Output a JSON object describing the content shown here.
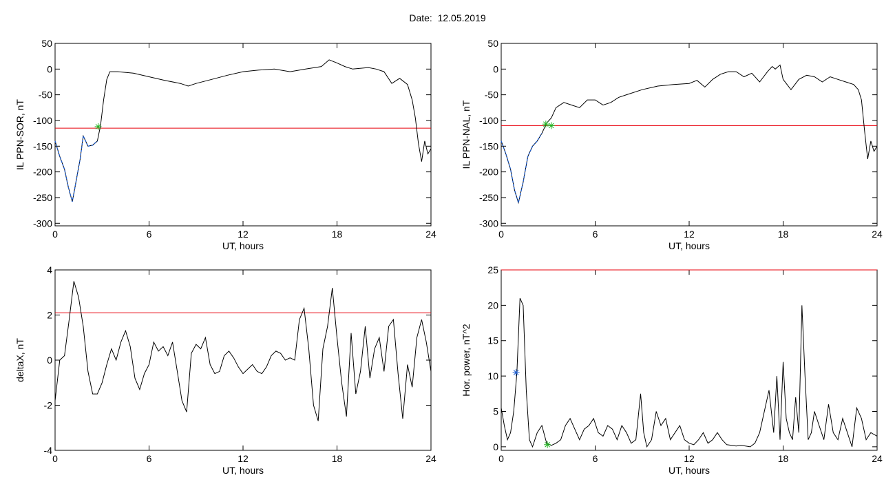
{
  "figure": {
    "date_label": "Date:",
    "date_value": "12.05.2019"
  },
  "colors": {
    "threshold": "#e8000b",
    "series": "#000000",
    "fit": "#1f5fd0",
    "marker_blue": "#1f5fd0",
    "marker_green": "#21b321"
  },
  "chart_data": [
    {
      "type": "line",
      "ylabel": "IL PPN-SOR, nT",
      "xlabel": "UT, hours",
      "xlim": [
        0,
        24
      ],
      "ylim": [
        -305,
        50
      ],
      "xticks": [
        0,
        6,
        12,
        18,
        24
      ],
      "yticks": [
        50,
        0,
        -50,
        -100,
        -150,
        -200,
        -250,
        -300
      ],
      "threshold": -115,
      "x": [
        0,
        0.3,
        0.6,
        0.85,
        1.1,
        1.3,
        1.6,
        1.8,
        2.1,
        2.4,
        2.7,
        2.9,
        3.1,
        3.3,
        3.5,
        4,
        5,
        6,
        7,
        8,
        8.5,
        9,
        10,
        11,
        12,
        13,
        14,
        15,
        16,
        17,
        17.5,
        18,
        18.5,
        19,
        20,
        20.5,
        21,
        21.5,
        22,
        22.5,
        22.8,
        23,
        23.2,
        23.4,
        23.6,
        23.8,
        24
      ],
      "values": [
        -140,
        -170,
        -195,
        -230,
        -258,
        -225,
        -175,
        -130,
        -150,
        -148,
        -140,
        -110,
        -60,
        -20,
        -5,
        -5,
        -8,
        -15,
        -22,
        -28,
        -33,
        -28,
        -20,
        -12,
        -5,
        -2,
        0,
        -5,
        0,
        5,
        18,
        12,
        5,
        0,
        3,
        0,
        -5,
        -28,
        -18,
        -30,
        -60,
        -95,
        -145,
        -180,
        -140,
        -165,
        -155
      ],
      "fit_x": [
        0,
        0.3,
        0.6,
        0.85,
        1.1,
        1.3,
        1.6,
        1.8,
        2.1,
        2.4,
        2.7
      ],
      "fit_values": [
        -140,
        -170,
        -195,
        -230,
        -258,
        -225,
        -175,
        -130,
        -150,
        -148,
        -140
      ],
      "markers": [
        {
          "x": 2.75,
          "y": -112,
          "color": "green"
        }
      ]
    },
    {
      "type": "line",
      "ylabel": "IL PPN-NAL, nT",
      "xlabel": "UT, hours",
      "xlim": [
        0,
        24
      ],
      "ylim": [
        -305,
        50
      ],
      "xticks": [
        0,
        6,
        12,
        18,
        24
      ],
      "yticks": [
        50,
        0,
        -50,
        -100,
        -150,
        -200,
        -250,
        -300
      ],
      "threshold": -110,
      "x": [
        0,
        0.3,
        0.6,
        0.85,
        1.1,
        1.4,
        1.7,
        2,
        2.3,
        2.6,
        2.9,
        3.2,
        3.5,
        4,
        4.5,
        5,
        5.5,
        6,
        6.5,
        7,
        7.5,
        8,
        9,
        10,
        11,
        12,
        12.5,
        13,
        13.5,
        14,
        14.5,
        15,
        15.5,
        16,
        16.5,
        17,
        17.3,
        17.5,
        17.8,
        18,
        18.5,
        19,
        19.5,
        20,
        20.5,
        21,
        21.5,
        22,
        22.5,
        22.8,
        23,
        23.2,
        23.4,
        23.6,
        23.8,
        24
      ],
      "values": [
        -140,
        -165,
        -195,
        -235,
        -260,
        -220,
        -170,
        -150,
        -140,
        -125,
        -105,
        -95,
        -75,
        -65,
        -70,
        -75,
        -60,
        -60,
        -70,
        -65,
        -55,
        -50,
        -40,
        -33,
        -30,
        -28,
        -22,
        -35,
        -20,
        -10,
        -5,
        -5,
        -15,
        -8,
        -25,
        -5,
        5,
        0,
        8,
        -20,
        -40,
        -20,
        -12,
        -15,
        -25,
        -15,
        -20,
        -25,
        -30,
        -40,
        -60,
        -120,
        -175,
        -140,
        -160,
        -150
      ],
      "fit_x": [
        0,
        0.3,
        0.6,
        0.85,
        1.1,
        1.4,
        1.7,
        2,
        2.3,
        2.6
      ],
      "fit_values": [
        -140,
        -165,
        -195,
        -235,
        -260,
        -220,
        -170,
        -150,
        -140,
        -125
      ],
      "markers": [
        {
          "x": 2.85,
          "y": -107,
          "color": "green"
        },
        {
          "x": 3.2,
          "y": -110,
          "color": "green"
        }
      ]
    },
    {
      "type": "line",
      "ylabel": "deltaX, nT",
      "xlabel": "UT, hours",
      "xlim": [
        0,
        24
      ],
      "ylim": [
        -4,
        4
      ],
      "xticks": [
        0,
        6,
        12,
        18,
        24
      ],
      "yticks": [
        4,
        2,
        0,
        -2,
        -4
      ],
      "threshold": 2.1,
      "x": [
        0,
        0.3,
        0.6,
        0.9,
        1.2,
        1.5,
        1.8,
        2.1,
        2.4,
        2.7,
        3,
        3.3,
        3.6,
        3.9,
        4.2,
        4.5,
        4.8,
        5.1,
        5.4,
        5.7,
        6,
        6.3,
        6.6,
        6.9,
        7.2,
        7.5,
        7.8,
        8.1,
        8.4,
        8.7,
        9,
        9.3,
        9.6,
        9.9,
        10.2,
        10.5,
        10.8,
        11.1,
        11.4,
        11.7,
        12,
        12.3,
        12.6,
        12.9,
        13.2,
        13.5,
        13.8,
        14.1,
        14.4,
        14.7,
        15,
        15.3,
        15.6,
        15.9,
        16.2,
        16.5,
        16.8,
        17.1,
        17.4,
        17.7,
        18,
        18.3,
        18.6,
        18.9,
        19.2,
        19.5,
        19.8,
        20.1,
        20.4,
        20.7,
        21,
        21.3,
        21.6,
        21.9,
        22.2,
        22.5,
        22.8,
        23.1,
        23.4,
        23.7,
        24
      ],
      "values": [
        -1.8,
        0,
        0.2,
        1.8,
        3.5,
        2.8,
        1.5,
        -0.5,
        -1.5,
        -1.5,
        -1,
        -0.2,
        0.5,
        0,
        0.8,
        1.3,
        0.6,
        -0.8,
        -1.3,
        -0.6,
        -0.2,
        0.8,
        0.4,
        0.6,
        0.2,
        0.8,
        -0.5,
        -1.8,
        -2.3,
        0.3,
        0.7,
        0.5,
        1.0,
        -0.2,
        -0.6,
        -0.5,
        0.2,
        0.4,
        0.1,
        -0.3,
        -0.6,
        -0.4,
        -0.2,
        -0.5,
        -0.6,
        -0.3,
        0.2,
        0.4,
        0.3,
        0.0,
        0.1,
        0.0,
        1.8,
        2.3,
        0.5,
        -2.0,
        -2.7,
        0.5,
        1.5,
        3.2,
        1.0,
        -1.0,
        -2.5,
        1.2,
        -1.5,
        -0.5,
        1.5,
        -0.8,
        0.5,
        1.0,
        -0.5,
        1.5,
        1.8,
        -0.6,
        -2.6,
        -0.2,
        -1.2,
        1.0,
        1.8,
        0.8,
        -0.5
      ],
      "markers": []
    },
    {
      "type": "line",
      "ylabel": "Hor. power, nT^2",
      "xlabel": "UT, hours",
      "xlim": [
        0,
        24
      ],
      "ylim": [
        -0.5,
        25
      ],
      "xticks": [
        0,
        6,
        12,
        18,
        24
      ],
      "yticks": [
        25,
        20,
        15,
        10,
        5,
        0
      ],
      "threshold": 25,
      "x": [
        0,
        0.2,
        0.4,
        0.6,
        0.8,
        1.0,
        1.2,
        1.4,
        1.6,
        1.8,
        2.0,
        2.3,
        2.6,
        2.9,
        3.2,
        3.5,
        3.8,
        4.1,
        4.4,
        4.7,
        5.0,
        5.3,
        5.6,
        5.9,
        6.2,
        6.5,
        6.8,
        7.1,
        7.4,
        7.7,
        8.0,
        8.3,
        8.6,
        8.9,
        9.1,
        9.3,
        9.6,
        9.9,
        10.2,
        10.5,
        10.8,
        11.1,
        11.4,
        11.7,
        12.0,
        12.3,
        12.6,
        12.9,
        13.2,
        13.5,
        13.8,
        14.1,
        14.4,
        14.7,
        15.0,
        15.3,
        15.6,
        15.9,
        16.2,
        16.5,
        16.8,
        17.1,
        17.4,
        17.6,
        17.8,
        18.0,
        18.2,
        18.4,
        18.6,
        18.8,
        19.0,
        19.2,
        19.4,
        19.6,
        19.8,
        20.0,
        20.3,
        20.6,
        20.9,
        21.2,
        21.5,
        21.8,
        22.1,
        22.4,
        22.7,
        23.0,
        23.3,
        23.6,
        24
      ],
      "values": [
        5.5,
        3,
        1,
        2,
        5,
        10.5,
        21,
        20,
        8,
        1,
        0,
        2,
        3,
        0.5,
        0.2,
        0.5,
        1,
        3,
        4,
        2.5,
        1,
        2.5,
        3,
        4,
        2,
        1.5,
        3,
        2.5,
        1,
        3,
        2,
        0.5,
        1,
        7.5,
        2,
        0,
        1,
        5,
        3,
        4,
        1,
        2,
        3,
        1,
        0.5,
        0.3,
        1,
        2,
        0.5,
        1,
        2,
        1,
        0.3,
        0.2,
        0.1,
        0.2,
        0.1,
        0,
        0.5,
        2,
        5,
        8,
        2,
        10,
        1,
        12,
        4,
        2,
        1,
        7,
        2,
        20,
        10,
        1,
        2,
        5,
        3,
        1,
        6,
        2,
        1,
        4,
        2,
        0,
        5.5,
        4,
        1,
        2,
        1.5
      ],
      "markers": [
        {
          "x": 0.95,
          "y": 10.5,
          "color": "blue"
        },
        {
          "x": 2.95,
          "y": 0.3,
          "color": "green"
        }
      ]
    }
  ]
}
